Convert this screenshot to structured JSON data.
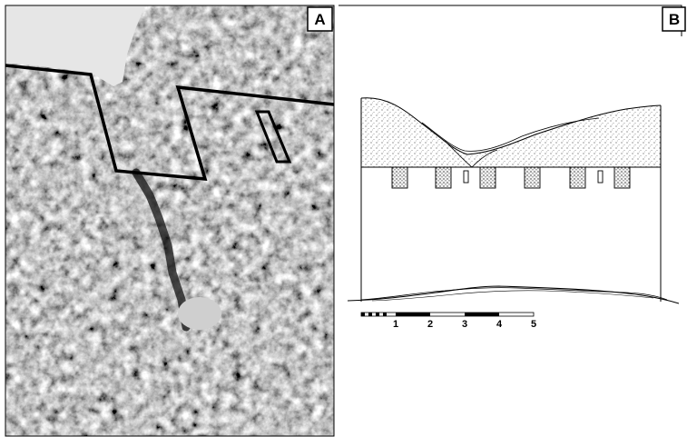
{
  "panels": [
    {
      "id": "A",
      "label": "A",
      "content": "photograph"
    },
    {
      "id": "B",
      "label": "B",
      "content": "elevation-drawing"
    }
  ],
  "scale_bar": {
    "ticks": [
      "1",
      "2",
      "3",
      "4",
      "5"
    ]
  },
  "colors": {
    "frame": "#000000",
    "background": "#ffffff"
  }
}
